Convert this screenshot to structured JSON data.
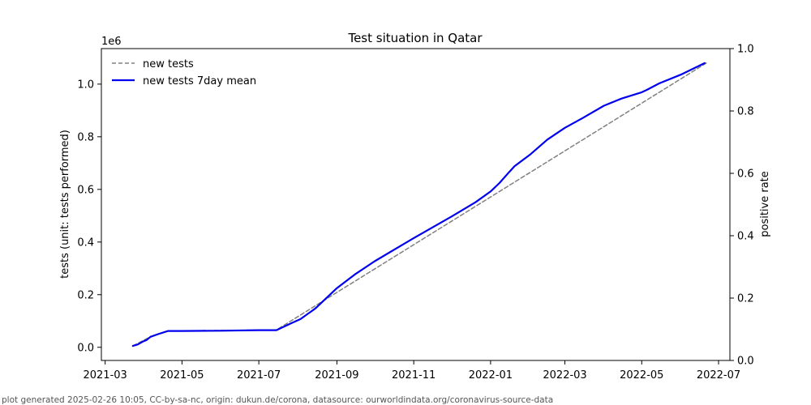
{
  "chart_data": {
    "type": "line",
    "title": "Test situation in Qatar",
    "ylabel": "tests (unit: tests performed)",
    "y2label": "positive rate",
    "y_offset_label": "1e6",
    "ylim": [
      -50000,
      1135000
    ],
    "y2lim": [
      0.0,
      1.0
    ],
    "xlim": [
      "2021-02-26",
      "2022-07-10"
    ],
    "x_ticks": [
      "2021-03",
      "2021-05",
      "2021-07",
      "2021-09",
      "2021-11",
      "2022-01",
      "2022-03",
      "2022-05",
      "2022-07"
    ],
    "y_ticks": [
      "0.0",
      "0.2",
      "0.4",
      "0.6",
      "0.8",
      "1.0"
    ],
    "y2_ticks": [
      "0.0",
      "0.2",
      "0.4",
      "0.6",
      "0.8",
      "1.0"
    ],
    "legend_position": "top-left",
    "grid": false,
    "series": [
      {
        "name": "new tests",
        "style": "dashed",
        "color": "#808080",
        "x": [
          "2021-03-23",
          "2021-04-05",
          "2021-04-20",
          "2021-07-15",
          "2022-06-22"
        ],
        "y": [
          5000,
          38000,
          62000,
          66000,
          1082000
        ]
      },
      {
        "name": "new tests 7day mean",
        "style": "solid",
        "color": "#0000ee",
        "x": [
          "2021-03-23",
          "2021-03-27",
          "2021-03-31",
          "2021-04-03",
          "2021-04-06",
          "2021-04-12",
          "2021-04-20",
          "2021-05-01",
          "2021-06-01",
          "2021-07-01",
          "2021-07-15",
          "2021-07-27",
          "2021-08-03",
          "2021-08-15",
          "2021-09-01",
          "2021-09-15",
          "2021-10-01",
          "2021-11-01",
          "2021-12-01",
          "2021-12-20",
          "2022-01-01",
          "2022-01-08",
          "2022-01-15",
          "2022-01-20",
          "2022-02-01",
          "2022-02-15",
          "2022-03-01",
          "2022-03-15",
          "2022-04-01",
          "2022-04-15",
          "2022-05-01",
          "2022-05-05",
          "2022-05-15",
          "2022-06-01",
          "2022-06-20"
        ],
        "y": [
          5000,
          11000,
          22000,
          28000,
          40000,
          50000,
          62000,
          62000,
          63000,
          65000,
          65000,
          92000,
          107000,
          148000,
          225000,
          276000,
          327000,
          415000,
          497000,
          551000,
          592000,
          624000,
          662000,
          688000,
          731000,
          789000,
          834000,
          871000,
          918000,
          945000,
          969000,
          978000,
          1003000,
          1036000,
          1080000
        ]
      }
    ]
  },
  "footer": {
    "note": "plot generated 2025-02-26 10:05, CC-by-sa-nc, origin: dukun.de/corona, datasource: ourworldindata.org/coronavirus-source-data"
  }
}
